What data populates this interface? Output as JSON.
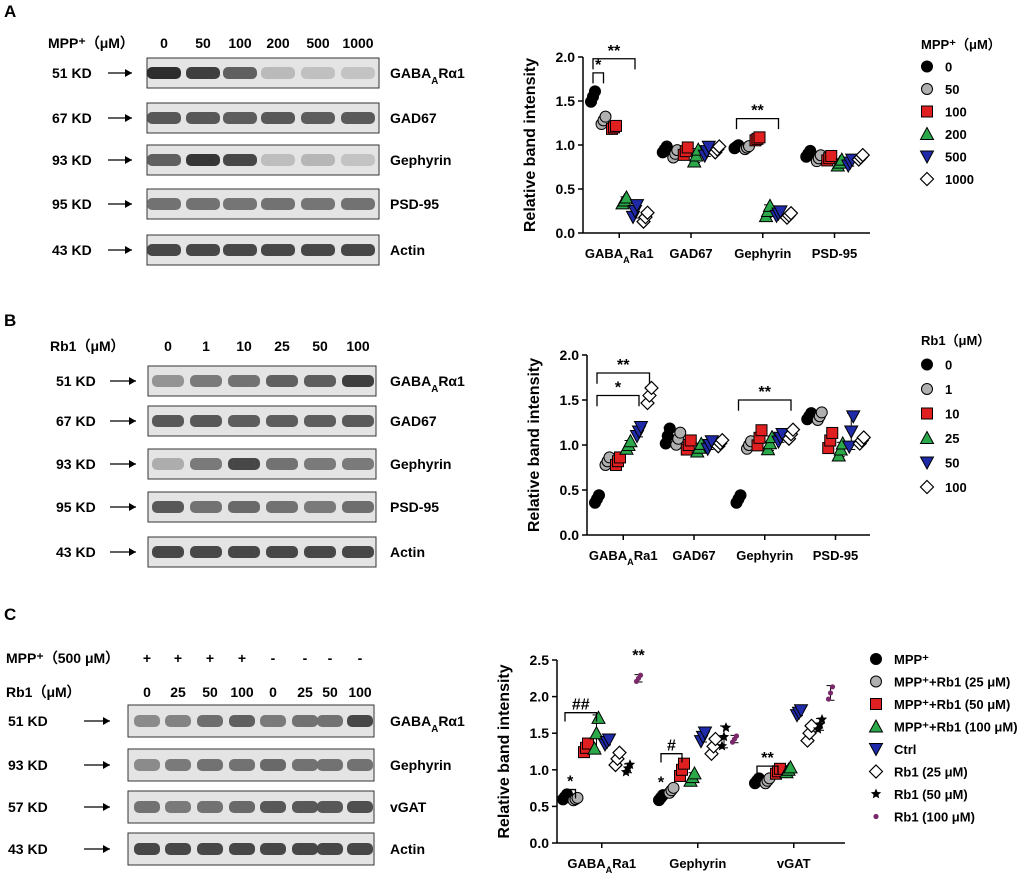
{
  "panels": [
    {
      "letter": "A",
      "blot": {
        "treatment_label": "MPP⁺（μM）",
        "lane_labels": [
          "0",
          "50",
          "100",
          "200",
          "500",
          "1000"
        ],
        "rows": [
          {
            "kd": "51 KD",
            "protein": "GABAARα1",
            "band_levels": [
              1.0,
              0.9,
              0.7,
              0.18,
              0.14,
              0.12
            ]
          },
          {
            "kd": "67 KD",
            "protein": "GAD67",
            "band_levels": [
              0.75,
              0.75,
              0.72,
              0.75,
              0.72,
              0.74
            ]
          },
          {
            "kd": "93 KD",
            "protein": "Gephyrin",
            "band_levels": [
              0.7,
              0.95,
              0.85,
              0.15,
              0.2,
              0.12
            ]
          },
          {
            "kd": "95 KD",
            "protein": "PSD-95",
            "band_levels": [
              0.6,
              0.6,
              0.58,
              0.6,
              0.58,
              0.6
            ]
          },
          {
            "kd": "43 KD",
            "protein": "Actin",
            "band_levels": [
              0.85,
              0.85,
              0.85,
              0.85,
              0.85,
              0.85
            ]
          }
        ]
      },
      "chart_data": {
        "type": "scatter",
        "ylabel": "Relative band intensity",
        "ylim": [
          0,
          2.0
        ],
        "yticks": [
          "0.0",
          "0.5",
          "1.0",
          "1.5",
          "2.0"
        ],
        "categories": [
          "GABAARa1",
          "GAD67",
          "Gephyrin",
          "PSD-95"
        ],
        "legend_title": "MPP⁺（μM）",
        "legend_placement": "right",
        "series": [
          {
            "name": "0",
            "marker": "circle",
            "color": "#000000",
            "values": [
              1.55,
              0.95,
              0.98,
              0.9
            ],
            "spread": [
              0.07,
              0.04,
              0.02,
              0.04
            ]
          },
          {
            "name": "50",
            "marker": "circle",
            "color": "#b0b0b0",
            "values": [
              1.28,
              0.9,
              0.97,
              0.85
            ],
            "spread": [
              0.05,
              0.05,
              0.02,
              0.04
            ]
          },
          {
            "name": "100",
            "marker": "square",
            "color": "#e02020",
            "values": [
              1.2,
              0.93,
              1.07,
              0.85
            ],
            "spread": [
              0.02,
              0.05,
              0.02,
              0.03
            ]
          },
          {
            "name": "200",
            "marker": "triangle-up",
            "color": "#2ba84a",
            "values": [
              0.37,
              0.88,
              0.25,
              0.8
            ],
            "spread": [
              0.04,
              0.08,
              0.07,
              0.04
            ]
          },
          {
            "name": "500",
            "marker": "triangle-down",
            "color": "#1f2aa8",
            "values": [
              0.25,
              0.93,
              0.22,
              0.8
            ],
            "spread": [
              0.08,
              0.06,
              0.03,
              0.04
            ]
          },
          {
            "name": "1000",
            "marker": "diamond",
            "color": "#ffffff",
            "values": [
              0.18,
              0.95,
              0.2,
              0.86
            ],
            "spread": [
              0.06,
              0.04,
              0.03,
              0.03
            ]
          }
        ],
        "annotations": [
          {
            "text": "*",
            "category": 0,
            "from_series": 0,
            "to_series": 1,
            "y": 1.82
          },
          {
            "text": "**",
            "category": 0,
            "from_series": 0,
            "to_series": 4,
            "y": 1.98
          },
          {
            "text": "**",
            "category": 2,
            "from_series": 0,
            "to_series": 4,
            "y": 1.3
          }
        ]
      }
    },
    {
      "letter": "B",
      "blot": {
        "treatment_label": "Rb1（μM）",
        "lane_labels": [
          "0",
          "1",
          "10",
          "25",
          "50",
          "100"
        ],
        "rows": [
          {
            "kd": "51 KD",
            "protein": "GABAARα1",
            "band_levels": [
              0.4,
              0.55,
              0.6,
              0.7,
              0.72,
              0.9
            ]
          },
          {
            "kd": "67 KD",
            "protein": "GAD67",
            "band_levels": [
              0.75,
              0.75,
              0.72,
              0.72,
              0.72,
              0.74
            ]
          },
          {
            "kd": "93 KD",
            "protein": "Gephyrin",
            "band_levels": [
              0.25,
              0.55,
              0.85,
              0.6,
              0.55,
              0.55
            ]
          },
          {
            "kd": "95 KD",
            "protein": "PSD-95",
            "band_levels": [
              0.75,
              0.6,
              0.65,
              0.6,
              0.55,
              0.62
            ]
          },
          {
            "kd": "43 KD",
            "protein": "Actin",
            "band_levels": [
              0.85,
              0.85,
              0.85,
              0.85,
              0.85,
              0.85
            ]
          }
        ]
      },
      "chart_data": {
        "type": "scatter",
        "ylabel": "Relative band intensity",
        "ylim": [
          0,
          2.0
        ],
        "yticks": [
          "0.0",
          "0.5",
          "1.0",
          "1.5",
          "2.0"
        ],
        "categories": [
          "GABAARa1",
          "GAD67",
          "Gephyrin",
          "PSD-95"
        ],
        "legend_title": "Rb1（μM）",
        "legend_placement": "right",
        "series": [
          {
            "name": "0",
            "marker": "circle",
            "color": "#000000",
            "values": [
              0.4,
              1.1,
              0.4,
              1.32
            ],
            "spread": [
              0.05,
              0.1,
              0.05,
              0.04
            ]
          },
          {
            "name": "1",
            "marker": "circle",
            "color": "#b0b0b0",
            "values": [
              0.82,
              1.07,
              1.0,
              1.32
            ],
            "spread": [
              0.05,
              0.08,
              0.05,
              0.05
            ]
          },
          {
            "name": "10",
            "marker": "square",
            "color": "#e02020",
            "values": [
              0.82,
              1.0,
              1.08,
              1.05
            ],
            "spread": [
              0.05,
              0.06,
              0.1,
              0.1
            ]
          },
          {
            "name": "25",
            "marker": "triangle-up",
            "color": "#2ba84a",
            "values": [
              1.0,
              0.97,
              1.02,
              0.95
            ],
            "spread": [
              0.05,
              0.05,
              0.08,
              0.08
            ]
          },
          {
            "name": "50",
            "marker": "triangle-down",
            "color": "#1f2aa8",
            "values": [
              1.15,
              1.0,
              1.08,
              1.15
            ],
            "spread": [
              0.06,
              0.05,
              0.05,
              0.2
            ]
          },
          {
            "name": "100",
            "marker": "diamond",
            "color": "#ffffff",
            "values": [
              1.55,
              1.02,
              1.12,
              1.05
            ],
            "spread": [
              0.1,
              0.04,
              0.06,
              0.04
            ]
          }
        ],
        "annotations": [
          {
            "text": "*",
            "category": 0,
            "from_series": 0,
            "to_series": 4,
            "y": 1.55
          },
          {
            "text": "**",
            "category": 0,
            "from_series": 0,
            "to_series": 5,
            "y": 1.8
          },
          {
            "text": "**",
            "category": 2,
            "from_series": 0,
            "to_series": 5,
            "y": 1.5
          }
        ]
      }
    },
    {
      "letter": "C",
      "blot": {
        "treatment_rows": [
          {
            "label": "MPP⁺（500 μM）",
            "values": [
              "+",
              "+",
              "+",
              "+",
              "-",
              "-",
              "-",
              "-"
            ]
          },
          {
            "label": "Rb1（μM）",
            "values": [
              "0",
              "25",
              "50",
              "100",
              "0",
              "25",
              "50",
              "100"
            ]
          }
        ],
        "rows": [
          {
            "kd": "51 KD",
            "protein": "GABAARα1",
            "band_levels": [
              0.45,
              0.5,
              0.62,
              0.7,
              0.55,
              0.6,
              0.6,
              0.85
            ]
          },
          {
            "kd": "93 KD",
            "protein": "Gephyrin",
            "band_levels": [
              0.45,
              0.55,
              0.6,
              0.6,
              0.65,
              0.6,
              0.6,
              0.6
            ]
          },
          {
            "kd": "57 KD",
            "protein": "vGAT",
            "band_levels": [
              0.6,
              0.55,
              0.6,
              0.65,
              0.75,
              0.75,
              0.75,
              0.8
            ]
          },
          {
            "kd": "43 KD",
            "protein": "Actin",
            "band_levels": [
              0.85,
              0.85,
              0.85,
              0.85,
              0.85,
              0.85,
              0.85,
              0.85
            ]
          }
        ]
      },
      "chart_data": {
        "type": "scatter",
        "ylabel": "Relative band intensity",
        "ylim": [
          0,
          2.5
        ],
        "yticks": [
          "0.0",
          "0.5",
          "1.0",
          "1.5",
          "2.0",
          "2.5"
        ],
        "categories": [
          "GABAARa1",
          "Gephyrin",
          "vGAT"
        ],
        "legend_title": "",
        "legend_placement": "right",
        "series": [
          {
            "name": "MPP⁺",
            "marker": "circle",
            "color": "#000000",
            "values": [
              0.63,
              0.62,
              0.85
            ],
            "spread": [
              0.04,
              0.04,
              0.04
            ]
          },
          {
            "name": "MPP⁺+Rb1 (25 μM)",
            "marker": "circle",
            "color": "#b0b0b0",
            "values": [
              0.6,
              0.72,
              0.85
            ],
            "spread": [
              0.02,
              0.04,
              0.04
            ]
          },
          {
            "name": "MPP⁺+Rb1 (50 μM)",
            "marker": "square",
            "color": "#e02020",
            "values": [
              1.3,
              1.0,
              0.98
            ],
            "spread": [
              0.07,
              0.1,
              0.04
            ]
          },
          {
            "name": "MPP⁺+Rb1 (100 μM)",
            "marker": "triangle-up",
            "color": "#2ba84a",
            "values": [
              1.5,
              0.9,
              1.0
            ],
            "spread": [
              0.25,
              0.06,
              0.04
            ]
          },
          {
            "name": "Ctrl",
            "marker": "triangle-down",
            "color": "#1f2aa8",
            "values": [
              1.38,
              1.45,
              1.78
            ],
            "spread": [
              0.04,
              0.07,
              0.04
            ]
          },
          {
            "name": "Rb1 (25 μM)",
            "marker": "diamond",
            "color": "#ffffff",
            "values": [
              1.15,
              1.32,
              1.5
            ],
            "spread": [
              0.1,
              0.12,
              0.12
            ]
          },
          {
            "name": "Rb1 (50 μM)",
            "marker": "star",
            "color": "#000000",
            "values": [
              1.02,
              1.45,
              1.62
            ],
            "spread": [
              0.06,
              0.15,
              0.08
            ]
          },
          {
            "name": "Rb1 (100 μM)",
            "marker": "dot",
            "color": "#7a2a6a",
            "values": [
              2.25,
              1.42,
              2.05
            ],
            "spread": [
              0.05,
              0.05,
              0.1
            ]
          }
        ],
        "annotations": [
          {
            "text": "*",
            "category": 0,
            "from_series": 0,
            "to_series": 1,
            "y": 0.73
          },
          {
            "text": "##",
            "category": 0,
            "from_series": 0,
            "to_series": 3,
            "y": 1.78
          },
          {
            "text": "**",
            "category": 0,
            "from_series": 7,
            "to_series": 7,
            "y": 2.45
          },
          {
            "text": "*",
            "category": 1,
            "from_series": 0,
            "to_series": 0,
            "y": 0.72
          },
          {
            "text": "#",
            "category": 1,
            "from_series": 0,
            "to_series": 2,
            "y": 1.22
          },
          {
            "text": "**",
            "category": 2,
            "from_series": 0,
            "to_series": 2,
            "y": 1.05
          }
        ]
      }
    }
  ]
}
